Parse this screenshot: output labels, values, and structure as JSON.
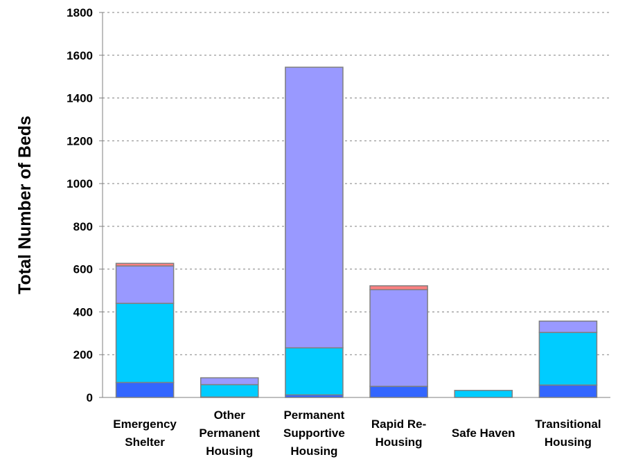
{
  "chart_data": {
    "type": "bar",
    "stacked": true,
    "ylabel": "Total Number of Beds",
    "ylim": [
      0,
      1800
    ],
    "yticks": [
      0,
      200,
      400,
      600,
      800,
      1000,
      1200,
      1400,
      1600,
      1800
    ],
    "grid": true,
    "categories": [
      [
        "Emergency",
        "Shelter"
      ],
      [
        "Other",
        "Permanent",
        "Housing"
      ],
      [
        "Permanent",
        "Supportive",
        "Housing"
      ],
      [
        "Rapid Re-",
        "Housing"
      ],
      [
        "Safe Haven"
      ],
      [
        "Transitional",
        "Housing"
      ]
    ],
    "series": [
      {
        "color": "#3366ff",
        "values": [
          70,
          2,
          12,
          52,
          0,
          58
        ]
      },
      {
        "color": "#00ccff",
        "values": [
          370,
          58,
          220,
          0,
          33,
          246
        ]
      },
      {
        "color": "#9999ff",
        "values": [
          175,
          32,
          1312,
          452,
          0,
          53
        ]
      },
      {
        "color": "#ff8080",
        "values": [
          12,
          0,
          0,
          18,
          0,
          0
        ]
      }
    ]
  }
}
